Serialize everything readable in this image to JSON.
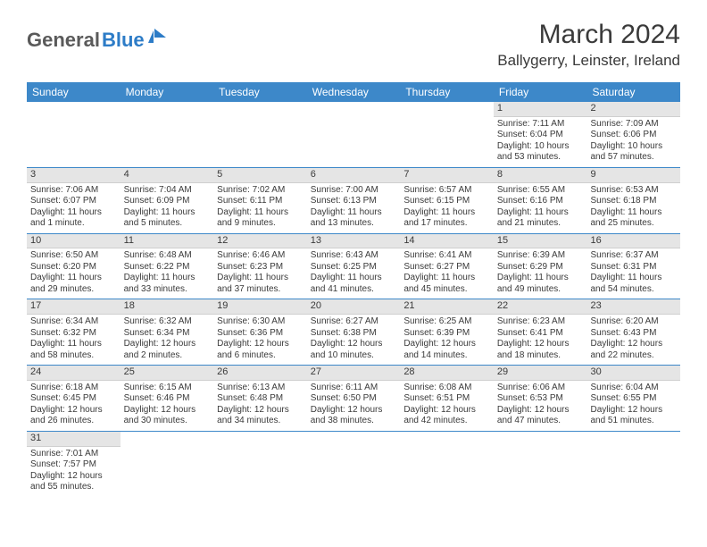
{
  "logo": {
    "text1": "General",
    "text2": "Blue"
  },
  "month_year": "March 2024",
  "location": "Ballygerry, Leinster, Ireland",
  "colors": {
    "header_bg": "#3d88c9",
    "header_text": "#ffffff",
    "daynum_bg": "#e5e5e5",
    "row_border": "#3d88c9",
    "body_text": "#3a3a3a",
    "logo_gray": "#5a5a5a",
    "logo_blue": "#2d7cc7"
  },
  "day_names": [
    "Sunday",
    "Monday",
    "Tuesday",
    "Wednesday",
    "Thursday",
    "Friday",
    "Saturday"
  ],
  "weeks": [
    [
      {
        "blank": true
      },
      {
        "blank": true
      },
      {
        "blank": true
      },
      {
        "blank": true
      },
      {
        "blank": true
      },
      {
        "day": "1",
        "sunrise": "Sunrise: 7:11 AM",
        "sunset": "Sunset: 6:04 PM",
        "dl1": "Daylight: 10 hours",
        "dl2": "and 53 minutes."
      },
      {
        "day": "2",
        "sunrise": "Sunrise: 7:09 AM",
        "sunset": "Sunset: 6:06 PM",
        "dl1": "Daylight: 10 hours",
        "dl2": "and 57 minutes."
      }
    ],
    [
      {
        "day": "3",
        "sunrise": "Sunrise: 7:06 AM",
        "sunset": "Sunset: 6:07 PM",
        "dl1": "Daylight: 11 hours",
        "dl2": "and 1 minute."
      },
      {
        "day": "4",
        "sunrise": "Sunrise: 7:04 AM",
        "sunset": "Sunset: 6:09 PM",
        "dl1": "Daylight: 11 hours",
        "dl2": "and 5 minutes."
      },
      {
        "day": "5",
        "sunrise": "Sunrise: 7:02 AM",
        "sunset": "Sunset: 6:11 PM",
        "dl1": "Daylight: 11 hours",
        "dl2": "and 9 minutes."
      },
      {
        "day": "6",
        "sunrise": "Sunrise: 7:00 AM",
        "sunset": "Sunset: 6:13 PM",
        "dl1": "Daylight: 11 hours",
        "dl2": "and 13 minutes."
      },
      {
        "day": "7",
        "sunrise": "Sunrise: 6:57 AM",
        "sunset": "Sunset: 6:15 PM",
        "dl1": "Daylight: 11 hours",
        "dl2": "and 17 minutes."
      },
      {
        "day": "8",
        "sunrise": "Sunrise: 6:55 AM",
        "sunset": "Sunset: 6:16 PM",
        "dl1": "Daylight: 11 hours",
        "dl2": "and 21 minutes."
      },
      {
        "day": "9",
        "sunrise": "Sunrise: 6:53 AM",
        "sunset": "Sunset: 6:18 PM",
        "dl1": "Daylight: 11 hours",
        "dl2": "and 25 minutes."
      }
    ],
    [
      {
        "day": "10",
        "sunrise": "Sunrise: 6:50 AM",
        "sunset": "Sunset: 6:20 PM",
        "dl1": "Daylight: 11 hours",
        "dl2": "and 29 minutes."
      },
      {
        "day": "11",
        "sunrise": "Sunrise: 6:48 AM",
        "sunset": "Sunset: 6:22 PM",
        "dl1": "Daylight: 11 hours",
        "dl2": "and 33 minutes."
      },
      {
        "day": "12",
        "sunrise": "Sunrise: 6:46 AM",
        "sunset": "Sunset: 6:23 PM",
        "dl1": "Daylight: 11 hours",
        "dl2": "and 37 minutes."
      },
      {
        "day": "13",
        "sunrise": "Sunrise: 6:43 AM",
        "sunset": "Sunset: 6:25 PM",
        "dl1": "Daylight: 11 hours",
        "dl2": "and 41 minutes."
      },
      {
        "day": "14",
        "sunrise": "Sunrise: 6:41 AM",
        "sunset": "Sunset: 6:27 PM",
        "dl1": "Daylight: 11 hours",
        "dl2": "and 45 minutes."
      },
      {
        "day": "15",
        "sunrise": "Sunrise: 6:39 AM",
        "sunset": "Sunset: 6:29 PM",
        "dl1": "Daylight: 11 hours",
        "dl2": "and 49 minutes."
      },
      {
        "day": "16",
        "sunrise": "Sunrise: 6:37 AM",
        "sunset": "Sunset: 6:31 PM",
        "dl1": "Daylight: 11 hours",
        "dl2": "and 54 minutes."
      }
    ],
    [
      {
        "day": "17",
        "sunrise": "Sunrise: 6:34 AM",
        "sunset": "Sunset: 6:32 PM",
        "dl1": "Daylight: 11 hours",
        "dl2": "and 58 minutes."
      },
      {
        "day": "18",
        "sunrise": "Sunrise: 6:32 AM",
        "sunset": "Sunset: 6:34 PM",
        "dl1": "Daylight: 12 hours",
        "dl2": "and 2 minutes."
      },
      {
        "day": "19",
        "sunrise": "Sunrise: 6:30 AM",
        "sunset": "Sunset: 6:36 PM",
        "dl1": "Daylight: 12 hours",
        "dl2": "and 6 minutes."
      },
      {
        "day": "20",
        "sunrise": "Sunrise: 6:27 AM",
        "sunset": "Sunset: 6:38 PM",
        "dl1": "Daylight: 12 hours",
        "dl2": "and 10 minutes."
      },
      {
        "day": "21",
        "sunrise": "Sunrise: 6:25 AM",
        "sunset": "Sunset: 6:39 PM",
        "dl1": "Daylight: 12 hours",
        "dl2": "and 14 minutes."
      },
      {
        "day": "22",
        "sunrise": "Sunrise: 6:23 AM",
        "sunset": "Sunset: 6:41 PM",
        "dl1": "Daylight: 12 hours",
        "dl2": "and 18 minutes."
      },
      {
        "day": "23",
        "sunrise": "Sunrise: 6:20 AM",
        "sunset": "Sunset: 6:43 PM",
        "dl1": "Daylight: 12 hours",
        "dl2": "and 22 minutes."
      }
    ],
    [
      {
        "day": "24",
        "sunrise": "Sunrise: 6:18 AM",
        "sunset": "Sunset: 6:45 PM",
        "dl1": "Daylight: 12 hours",
        "dl2": "and 26 minutes."
      },
      {
        "day": "25",
        "sunrise": "Sunrise: 6:15 AM",
        "sunset": "Sunset: 6:46 PM",
        "dl1": "Daylight: 12 hours",
        "dl2": "and 30 minutes."
      },
      {
        "day": "26",
        "sunrise": "Sunrise: 6:13 AM",
        "sunset": "Sunset: 6:48 PM",
        "dl1": "Daylight: 12 hours",
        "dl2": "and 34 minutes."
      },
      {
        "day": "27",
        "sunrise": "Sunrise: 6:11 AM",
        "sunset": "Sunset: 6:50 PM",
        "dl1": "Daylight: 12 hours",
        "dl2": "and 38 minutes."
      },
      {
        "day": "28",
        "sunrise": "Sunrise: 6:08 AM",
        "sunset": "Sunset: 6:51 PM",
        "dl1": "Daylight: 12 hours",
        "dl2": "and 42 minutes."
      },
      {
        "day": "29",
        "sunrise": "Sunrise: 6:06 AM",
        "sunset": "Sunset: 6:53 PM",
        "dl1": "Daylight: 12 hours",
        "dl2": "and 47 minutes."
      },
      {
        "day": "30",
        "sunrise": "Sunrise: 6:04 AM",
        "sunset": "Sunset: 6:55 PM",
        "dl1": "Daylight: 12 hours",
        "dl2": "and 51 minutes."
      }
    ],
    [
      {
        "day": "31",
        "sunrise": "Sunrise: 7:01 AM",
        "sunset": "Sunset: 7:57 PM",
        "dl1": "Daylight: 12 hours",
        "dl2": "and 55 minutes."
      },
      {
        "blank": true
      },
      {
        "blank": true
      },
      {
        "blank": true
      },
      {
        "blank": true
      },
      {
        "blank": true
      },
      {
        "blank": true
      }
    ]
  ]
}
